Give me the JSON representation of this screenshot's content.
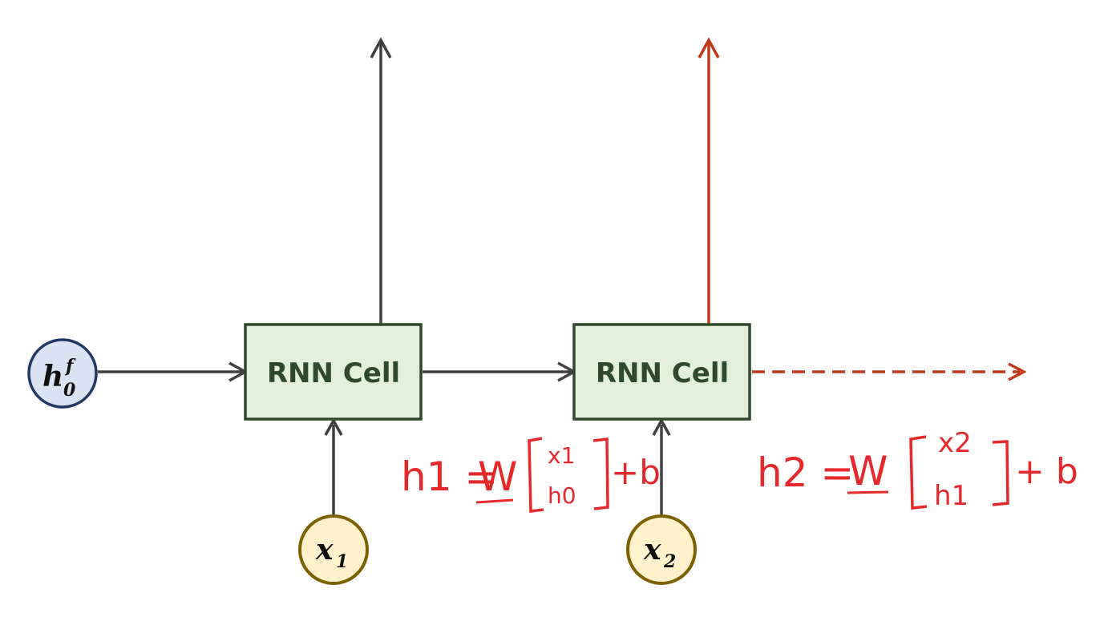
{
  "diagram": {
    "cells": [
      {
        "label": "RNN Cell"
      },
      {
        "label": "RNN Cell"
      }
    ],
    "initial_state": {
      "symbol": "h",
      "subscript": "0",
      "superscript": "f"
    },
    "inputs": [
      {
        "symbol": "x",
        "subscript": "1"
      },
      {
        "symbol": "x",
        "subscript": "2"
      }
    ],
    "annotations": [
      {
        "lhs": "h1 =",
        "weight": "W",
        "vector_top": "x1",
        "vector_bottom": "h0",
        "bias": "+b"
      },
      {
        "lhs": "h2 =",
        "weight": "W",
        "vector_top": "x2",
        "vector_bottom": "h1",
        "bias": "+ b"
      }
    ],
    "colors": {
      "cell_fill": "#e2efd9",
      "cell_border": "#2f4a2a",
      "arrow": "#404040",
      "highlight": "#c0391b",
      "handwriting": "#e5282a",
      "state_fill": "#dae3f3",
      "state_border": "#1f3864",
      "input_fill": "#fff2cc",
      "input_border": "#7f6000"
    }
  }
}
